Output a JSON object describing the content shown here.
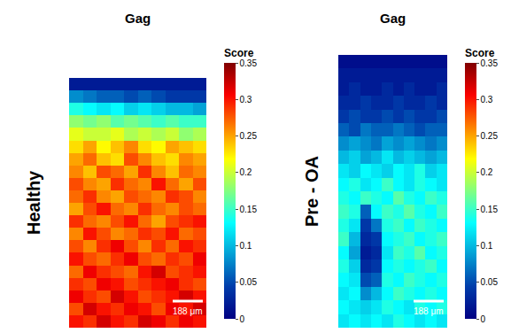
{
  "chart_data": [
    {
      "type": "heatmap",
      "title": "Gag",
      "row_label": "Healthy",
      "scale_bar": "188 μm",
      "tick_labels": false,
      "colorbar": {
        "title": "Score",
        "range": [
          0,
          0.35
        ],
        "ticks": [
          0,
          0.05,
          0.1,
          0.15,
          0.2,
          0.25,
          0.3,
          0.35
        ]
      },
      "z": [
        [
          0.02,
          0.02,
          0.02,
          0.02,
          0.02,
          0.02,
          0.02,
          0.02,
          0.02,
          0.02
        ],
        [
          0.08,
          0.07,
          0.06,
          0.06,
          0.05,
          0.06,
          0.05,
          0.04,
          0.04,
          0.04
        ],
        [
          0.14,
          0.13,
          0.12,
          0.13,
          0.11,
          0.12,
          0.11,
          0.1,
          0.1,
          0.09
        ],
        [
          0.18,
          0.17,
          0.18,
          0.16,
          0.17,
          0.16,
          0.15,
          0.16,
          0.15,
          0.15
        ],
        [
          0.21,
          0.2,
          0.2,
          0.21,
          0.19,
          0.2,
          0.19,
          0.2,
          0.18,
          0.19
        ],
        [
          0.23,
          0.25,
          0.22,
          0.24,
          0.26,
          0.23,
          0.22,
          0.25,
          0.24,
          0.23
        ],
        [
          0.25,
          0.27,
          0.24,
          0.23,
          0.28,
          0.26,
          0.24,
          0.23,
          0.26,
          0.25
        ],
        [
          0.26,
          0.24,
          0.28,
          0.27,
          0.25,
          0.29,
          0.26,
          0.24,
          0.27,
          0.26
        ],
        [
          0.28,
          0.26,
          0.25,
          0.29,
          0.27,
          0.26,
          0.3,
          0.27,
          0.25,
          0.28
        ],
        [
          0.27,
          0.29,
          0.26,
          0.25,
          0.28,
          0.27,
          0.26,
          0.29,
          0.28,
          0.26
        ],
        [
          0.25,
          0.28,
          0.3,
          0.27,
          0.26,
          0.29,
          0.27,
          0.26,
          0.28,
          0.27
        ],
        [
          0.29,
          0.27,
          0.26,
          0.28,
          0.3,
          0.27,
          0.25,
          0.28,
          0.29,
          0.3
        ],
        [
          0.26,
          0.3,
          0.28,
          0.26,
          0.27,
          0.29,
          0.28,
          0.3,
          0.27,
          0.28
        ],
        [
          0.28,
          0.26,
          0.29,
          0.31,
          0.28,
          0.26,
          0.29,
          0.27,
          0.3,
          0.29
        ],
        [
          0.3,
          0.28,
          0.27,
          0.29,
          0.31,
          0.28,
          0.27,
          0.29,
          0.28,
          0.31
        ],
        [
          0.27,
          0.31,
          0.29,
          0.28,
          0.27,
          0.3,
          0.32,
          0.28,
          0.29,
          0.3
        ],
        [
          0.29,
          0.28,
          0.31,
          0.3,
          0.28,
          0.29,
          0.3,
          0.31,
          0.29,
          0.28
        ],
        [
          0.31,
          0.29,
          0.28,
          0.32,
          0.3,
          0.28,
          0.29,
          0.3,
          0.32,
          0.3
        ],
        [
          0.28,
          0.32,
          0.3,
          0.29,
          0.31,
          0.3,
          0.28,
          0.31,
          0.3,
          0.32
        ],
        [
          0.3,
          0.29,
          0.32,
          0.3,
          0.29,
          0.32,
          0.31,
          0.29,
          0.31,
          0.3
        ]
      ]
    },
    {
      "type": "heatmap",
      "title": "Gag",
      "row_label": "Pre - OA",
      "scale_bar": "188 μm",
      "tick_labels": false,
      "colorbar": {
        "title": "Score",
        "range": [
          0,
          0.35
        ],
        "ticks": [
          0,
          0.05,
          0.1,
          0.15,
          0.2,
          0.25,
          0.3,
          0.35
        ]
      },
      "z": [
        [
          0.01,
          0.01,
          0.01,
          0.01,
          0.01,
          0.01,
          0.01,
          0.01,
          0.01,
          0.01
        ],
        [
          0.02,
          0.02,
          0.02,
          0.02,
          0.02,
          0.02,
          0.02,
          0.02,
          0.02,
          0.02
        ],
        [
          0.02,
          0.03,
          0.02,
          0.02,
          0.03,
          0.02,
          0.03,
          0.02,
          0.02,
          0.03
        ],
        [
          0.03,
          0.03,
          0.04,
          0.03,
          0.03,
          0.04,
          0.03,
          0.03,
          0.04,
          0.03
        ],
        [
          0.04,
          0.05,
          0.04,
          0.04,
          0.05,
          0.04,
          0.05,
          0.04,
          0.04,
          0.05
        ],
        [
          0.06,
          0.05,
          0.07,
          0.06,
          0.06,
          0.07,
          0.06,
          0.05,
          0.06,
          0.06
        ],
        [
          0.08,
          0.09,
          0.08,
          0.07,
          0.09,
          0.08,
          0.09,
          0.08,
          0.07,
          0.08
        ],
        [
          0.1,
          0.11,
          0.09,
          0.1,
          0.12,
          0.1,
          0.11,
          0.1,
          0.09,
          0.1
        ],
        [
          0.12,
          0.11,
          0.13,
          0.12,
          0.11,
          0.13,
          0.12,
          0.14,
          0.11,
          0.12
        ],
        [
          0.13,
          0.14,
          0.12,
          0.13,
          0.15,
          0.13,
          0.12,
          0.14,
          0.13,
          0.12
        ],
        [
          0.14,
          0.13,
          0.15,
          0.14,
          0.13,
          0.16,
          0.14,
          0.13,
          0.15,
          0.14
        ],
        [
          0.15,
          0.14,
          0.06,
          0.13,
          0.15,
          0.14,
          0.16,
          0.14,
          0.13,
          0.15
        ],
        [
          0.14,
          0.12,
          0.04,
          0.07,
          0.14,
          0.15,
          0.13,
          0.15,
          0.14,
          0.13
        ],
        [
          0.15,
          0.1,
          0.03,
          0.04,
          0.13,
          0.14,
          0.15,
          0.13,
          0.14,
          0.15
        ],
        [
          0.13,
          0.09,
          0.02,
          0.03,
          0.12,
          0.15,
          0.14,
          0.16,
          0.13,
          0.14
        ],
        [
          0.14,
          0.11,
          0.03,
          0.04,
          0.13,
          0.14,
          0.13,
          0.14,
          0.15,
          0.13
        ],
        [
          0.13,
          0.12,
          0.05,
          0.06,
          0.14,
          0.13,
          0.15,
          0.14,
          0.13,
          0.14
        ],
        [
          0.12,
          0.13,
          0.08,
          0.1,
          0.13,
          0.15,
          0.14,
          0.13,
          0.14,
          0.13
        ],
        [
          0.13,
          0.12,
          0.11,
          0.12,
          0.14,
          0.13,
          0.12,
          0.14,
          0.13,
          0.14
        ],
        [
          0.12,
          0.13,
          0.12,
          0.13,
          0.12,
          0.14,
          0.13,
          0.12,
          0.13,
          0.12
        ]
      ]
    }
  ]
}
